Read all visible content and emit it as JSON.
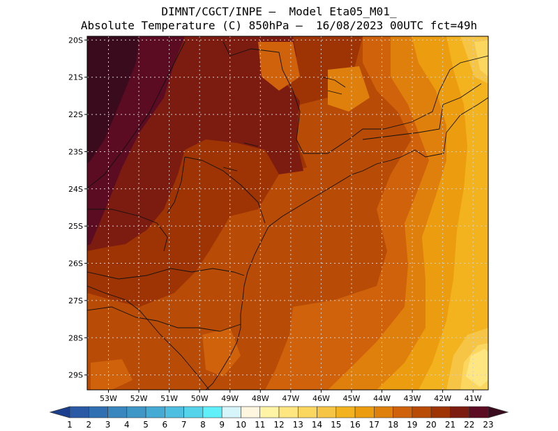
{
  "title_line1": "DIMNT/CGCT/INPE –  Model Eta05_M01_",
  "title_line2": "Absolute Temperature (C) 850hPa –  16/08/2023 00UTC fct=49h",
  "lat_ticks": [
    "20S",
    "21S",
    "22S",
    "23S",
    "24S",
    "25S",
    "26S",
    "27S",
    "28S",
    "29S"
  ],
  "lon_ticks": [
    "53W",
    "52W",
    "51W",
    "50W",
    "49W",
    "48W",
    "47W",
    "46W",
    "45W",
    "44W",
    "43W",
    "42W",
    "41W"
  ],
  "colorbar": {
    "labels": [
      "1",
      "2",
      "3",
      "4",
      "5",
      "6",
      "7",
      "8",
      "9",
      "10",
      "11",
      "12",
      "13",
      "14",
      "15",
      "16",
      "17",
      "18",
      "19",
      "20",
      "21",
      "22",
      "23"
    ],
    "colors": [
      "#1b3f8f",
      "#2a5aa6",
      "#2f6fb2",
      "#3a86bf",
      "#3f97c8",
      "#46abd4",
      "#4ebfe0",
      "#55d3ea",
      "#5ff0f9",
      "#d6f5fb",
      "#fff6df",
      "#fff4a6",
      "#ffe680",
      "#fbd75f",
      "#f6c545",
      "#f2b31e",
      "#eb9c0f",
      "#df7f0c",
      "#cf620a",
      "#b84b06",
      "#9e3404",
      "#7c1c10",
      "#5b0b22",
      "#3a0b1d"
    ]
  },
  "map": {
    "lon_min": -53.7,
    "lon_max": -40.5,
    "lat_min": -29.4,
    "lat_max": -19.9
  }
}
